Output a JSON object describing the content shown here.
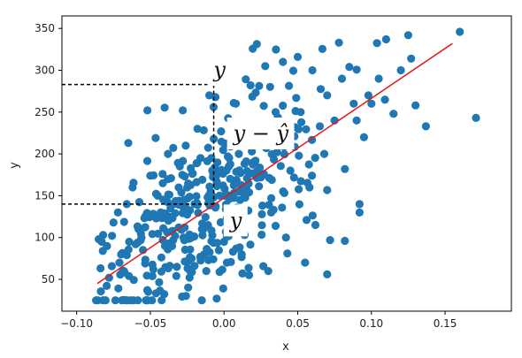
{
  "chart_data": {
    "type": "scatter",
    "title": "",
    "xlabel": "x",
    "ylabel": "y",
    "xlim": [
      -0.11,
      0.195
    ],
    "ylim": [
      12,
      365
    ],
    "xticks": [
      -0.1,
      -0.05,
      0.0,
      0.05,
      0.1,
      0.15
    ],
    "xtick_labels": [
      "−0.10",
      "−0.05",
      "0.00",
      "0.05",
      "0.10",
      "0.15"
    ],
    "yticks": [
      50,
      100,
      150,
      200,
      250,
      300,
      350
    ],
    "ytick_labels": [
      "50",
      "100",
      "150",
      "200",
      "250",
      "300",
      "350"
    ],
    "grid": false,
    "colors": {
      "points": "#1f77b4",
      "fit_line": "#e8161b",
      "guides": "#000000"
    },
    "fit_line": {
      "x": [
        -0.086,
        0.155
      ],
      "y": [
        45,
        332
      ]
    },
    "highlight": {
      "x": -0.007,
      "y_observed": 283,
      "y_predicted": 140
    },
    "annotations": [
      {
        "id": "y-observed",
        "text": "y",
        "x": -0.003,
        "y": 292
      },
      {
        "id": "residual",
        "text": "y − ŷ",
        "x": 0.025,
        "y": 216
      },
      {
        "id": "y-predicted",
        "text": "y",
        "x": 0.008,
        "y": 112
      }
    ],
    "scatter_seed": 7,
    "point_count": 442,
    "points": [
      [
        -0.085,
        98
      ],
      [
        -0.082,
        103
      ],
      [
        -0.078,
        52
      ],
      [
        -0.075,
        118
      ],
      [
        -0.072,
        130
      ],
      [
        -0.068,
        60
      ],
      [
        -0.066,
        140
      ],
      [
        -0.065,
        213
      ],
      [
        -0.062,
        160
      ],
      [
        -0.06,
        92
      ],
      [
        -0.058,
        110
      ],
      [
        -0.055,
        85
      ],
      [
        -0.052,
        252
      ],
      [
        -0.05,
        174
      ],
      [
        -0.048,
        62
      ],
      [
        -0.045,
        150
      ],
      [
        -0.043,
        130
      ],
      [
        -0.04,
        90
      ],
      [
        -0.038,
        200
      ],
      [
        -0.035,
        108
      ],
      [
        -0.032,
        65
      ],
      [
        -0.03,
        185
      ],
      [
        -0.028,
        252
      ],
      [
        -0.025,
        160
      ],
      [
        -0.022,
        75
      ],
      [
        -0.02,
        140
      ],
      [
        -0.018,
        230
      ],
      [
        -0.015,
        110
      ],
      [
        -0.012,
        60
      ],
      [
        -0.01,
        270
      ],
      [
        -0.008,
        180
      ],
      [
        -0.005,
        27
      ],
      [
        -0.003,
        150
      ],
      [
        0.0,
        95
      ],
      [
        0.002,
        70
      ],
      [
        0.005,
        125
      ],
      [
        0.008,
        260
      ],
      [
        0.01,
        200
      ],
      [
        0.012,
        80
      ],
      [
        0.015,
        160
      ],
      [
        0.018,
        282
      ],
      [
        0.02,
        220
      ],
      [
        0.025,
        172
      ],
      [
        0.028,
        305
      ],
      [
        0.03,
        60
      ],
      [
        0.032,
        130
      ],
      [
        0.035,
        250
      ],
      [
        0.038,
        220
      ],
      [
        0.04,
        310
      ],
      [
        0.042,
        100
      ],
      [
        0.045,
        180
      ],
      [
        0.048,
        232
      ],
      [
        0.05,
        316
      ],
      [
        0.052,
        250
      ],
      [
        0.055,
        70
      ],
      [
        0.058,
        160
      ],
      [
        0.06,
        300
      ],
      [
        0.062,
        115
      ],
      [
        0.065,
        233
      ],
      [
        0.068,
        200
      ],
      [
        0.07,
        270
      ],
      [
        0.072,
        97
      ],
      [
        0.075,
        240
      ],
      [
        0.078,
        333
      ],
      [
        0.08,
        290
      ],
      [
        0.082,
        182
      ],
      [
        0.085,
        304
      ],
      [
        0.088,
        260
      ],
      [
        0.09,
        240
      ],
      [
        0.092,
        130
      ],
      [
        0.095,
        220
      ],
      [
        0.098,
        270
      ],
      [
        0.1,
        260
      ],
      [
        0.105,
        290
      ],
      [
        0.11,
        337
      ],
      [
        0.115,
        248
      ],
      [
        0.12,
        300
      ],
      [
        0.125,
        342
      ],
      [
        0.127,
        314
      ],
      [
        0.13,
        258
      ],
      [
        0.137,
        233
      ],
      [
        0.16,
        346
      ],
      [
        0.171,
        243
      ],
      [
        0.092,
        140
      ],
      [
        0.082,
        96
      ],
      [
        0.07,
        56
      ],
      [
        0.056,
        121
      ],
      [
        0.043,
        81
      ],
      [
        0.035,
        114
      ],
      [
        0.027,
        176
      ],
      [
        0.017,
        55
      ],
      [
        0.003,
        104
      ],
      [
        -0.007,
        218
      ],
      [
        -0.016,
        195
      ],
      [
        -0.026,
        210
      ],
      [
        -0.036,
        171
      ],
      [
        -0.046,
        123
      ],
      [
        -0.056,
        100
      ],
      [
        -0.066,
        79
      ],
      [
        -0.076,
        102
      ],
      [
        -0.083,
        95
      ],
      [
        -0.071,
        70
      ]
    ]
  }
}
